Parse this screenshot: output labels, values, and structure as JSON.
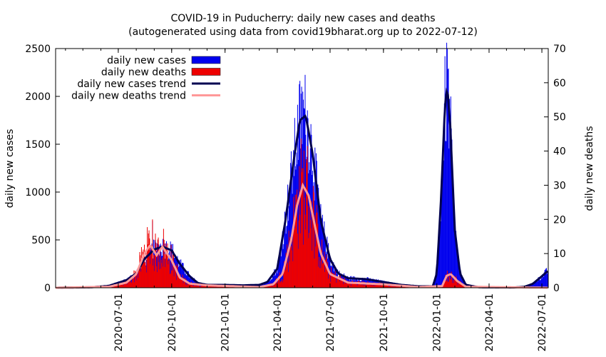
{
  "chart_data": {
    "type": "bar",
    "title": "COVID-19 in Puducherry: daily new cases and deaths",
    "subtitle": "(autogenerated using data from covid19bharat.org up to 2022-07-12)",
    "ylabel": "daily new cases",
    "y2label": "daily new deaths",
    "ylim": [
      0,
      2500
    ],
    "y2lim": [
      0,
      70
    ],
    "yticks": [
      0,
      500,
      1000,
      1500,
      2000,
      2500
    ],
    "y2ticks": [
      0,
      10,
      20,
      30,
      40,
      50,
      60,
      70
    ],
    "xlim": [
      "2020-03-15",
      "2022-07-12"
    ],
    "xticks": [
      "2020-07-01",
      "2020-10-01",
      "2021-01-01",
      "2021-04-01",
      "2021-07-01",
      "2021-10-01",
      "2022-01-01",
      "2022-04-01",
      "2022-07-01"
    ],
    "legend": {
      "position": "top-left",
      "entries": [
        "daily new cases",
        "daily new deaths",
        "daily new cases trend",
        "daily new deaths trend"
      ]
    },
    "colors": {
      "cases": "#0000ee",
      "deaths": "#ee0000",
      "cases_trend": "#000050",
      "deaths_trend": "#ff9999"
    },
    "cases_trend": [
      [
        "2020-03-15",
        0
      ],
      [
        "2020-05-15",
        5
      ],
      [
        "2020-06-15",
        20
      ],
      [
        "2020-07-15",
        80
      ],
      [
        "2020-08-01",
        150
      ],
      [
        "2020-08-15",
        300
      ],
      [
        "2020-09-01",
        400
      ],
      [
        "2020-09-15",
        430
      ],
      [
        "2020-10-01",
        390
      ],
      [
        "2020-10-15",
        250
      ],
      [
        "2020-11-01",
        120
      ],
      [
        "2020-11-15",
        50
      ],
      [
        "2020-12-01",
        30
      ],
      [
        "2021-01-01",
        30
      ],
      [
        "2021-02-01",
        25
      ],
      [
        "2021-03-01",
        30
      ],
      [
        "2021-03-15",
        60
      ],
      [
        "2021-04-01",
        200
      ],
      [
        "2021-04-15",
        700
      ],
      [
        "2021-05-01",
        1400
      ],
      [
        "2021-05-10",
        1750
      ],
      [
        "2021-05-20",
        1800
      ],
      [
        "2021-06-01",
        1400
      ],
      [
        "2021-06-15",
        700
      ],
      [
        "2021-07-01",
        300
      ],
      [
        "2021-07-15",
        150
      ],
      [
        "2021-08-01",
        100
      ],
      [
        "2021-09-01",
        90
      ],
      [
        "2021-10-01",
        60
      ],
      [
        "2021-11-01",
        30
      ],
      [
        "2021-12-01",
        15
      ],
      [
        "2021-12-25",
        15
      ],
      [
        "2022-01-01",
        150
      ],
      [
        "2022-01-08",
        900
      ],
      [
        "2022-01-15",
        1900
      ],
      [
        "2022-01-19",
        2100
      ],
      [
        "2022-01-24",
        1700
      ],
      [
        "2022-02-01",
        600
      ],
      [
        "2022-02-10",
        150
      ],
      [
        "2022-02-20",
        30
      ],
      [
        "2022-03-15",
        5
      ],
      [
        "2022-05-15",
        3
      ],
      [
        "2022-06-01",
        10
      ],
      [
        "2022-06-15",
        40
      ],
      [
        "2022-07-01",
        120
      ],
      [
        "2022-07-12",
        180
      ]
    ],
    "deaths_trend": [
      [
        "2020-03-15",
        0
      ],
      [
        "2020-06-15",
        0.3
      ],
      [
        "2020-07-15",
        1.5
      ],
      [
        "2020-08-01",
        4
      ],
      [
        "2020-08-15",
        10
      ],
      [
        "2020-08-25",
        12.5
      ],
      [
        "2020-09-05",
        9.5
      ],
      [
        "2020-09-15",
        12
      ],
      [
        "2020-10-01",
        8
      ],
      [
        "2020-10-15",
        3
      ],
      [
        "2020-11-01",
        1.2
      ],
      [
        "2020-12-01",
        0.7
      ],
      [
        "2021-03-01",
        0.2
      ],
      [
        "2021-03-25",
        1
      ],
      [
        "2021-04-10",
        4
      ],
      [
        "2021-04-25",
        14
      ],
      [
        "2021-05-05",
        24
      ],
      [
        "2021-05-15",
        30
      ],
      [
        "2021-05-25",
        27
      ],
      [
        "2021-06-05",
        18
      ],
      [
        "2021-06-15",
        10
      ],
      [
        "2021-07-01",
        4
      ],
      [
        "2021-08-01",
        1.5
      ],
      [
        "2021-10-01",
        1
      ],
      [
        "2021-12-01",
        0.2
      ],
      [
        "2022-01-10",
        0.5
      ],
      [
        "2022-01-18",
        3.5
      ],
      [
        "2022-01-25",
        4
      ],
      [
        "2022-02-05",
        2
      ],
      [
        "2022-02-20",
        0.3
      ],
      [
        "2022-07-12",
        0
      ]
    ],
    "notable_spikes": [
      {
        "date": "2020-08-29",
        "cases": 700,
        "deaths": 20
      },
      {
        "date": "2021-05-15",
        "cases": 2050,
        "deaths": 35
      },
      {
        "date": "2022-01-19",
        "cases": 2500,
        "deaths": 5
      }
    ]
  }
}
